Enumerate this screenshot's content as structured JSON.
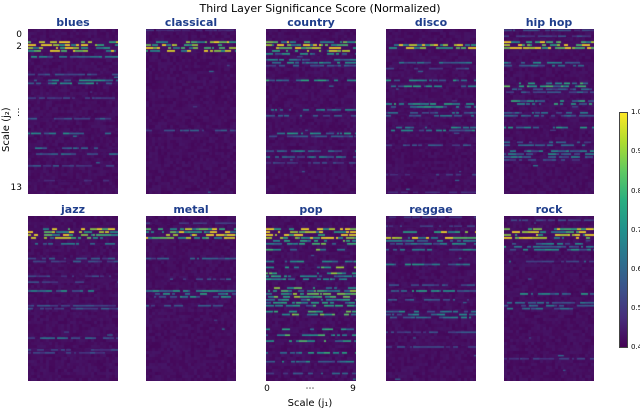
{
  "chart_data": {
    "type": "heatmap",
    "title": "Third Layer Significance Score (Normalized)",
    "xlabel": "Scale  (j₁)",
    "ylabel": "Scale  (j₂)",
    "x_ticks": [
      "0",
      "⋯",
      "9"
    ],
    "y_ticks": [
      "0",
      "2",
      "⋮",
      "13"
    ],
    "x_range": [
      0,
      9
    ],
    "y_range": [
      0,
      13
    ],
    "value_range": [
      0.4,
      1.0
    ],
    "colorbar": {
      "colormap": "viridis",
      "min": 0.4,
      "max": 1.0,
      "ticks": [
        "1.0",
        "0.9",
        "0.8",
        "0.7",
        "0.6",
        "0.5",
        "0.4"
      ]
    },
    "panels": [
      {
        "genre": "blues",
        "row_intensity": [
          0.45,
          0.82,
          0.58,
          0.5,
          0.62,
          0.48,
          0.6,
          0.52,
          0.58,
          0.48,
          0.55,
          0.5,
          0.46,
          0.44
        ]
      },
      {
        "genre": "classical",
        "row_intensity": [
          0.44,
          0.78,
          0.52,
          0.46,
          0.55,
          0.45,
          0.52,
          0.46,
          0.5,
          0.45,
          0.48,
          0.44,
          0.43,
          0.42
        ]
      },
      {
        "genre": "country",
        "row_intensity": [
          0.46,
          0.8,
          0.6,
          0.52,
          0.63,
          0.5,
          0.58,
          0.52,
          0.6,
          0.5,
          0.56,
          0.48,
          0.46,
          0.44
        ]
      },
      {
        "genre": "disco",
        "row_intensity": [
          0.45,
          0.8,
          0.56,
          0.5,
          0.6,
          0.5,
          0.62,
          0.54,
          0.58,
          0.5,
          0.56,
          0.5,
          0.47,
          0.44
        ]
      },
      {
        "genre": "hip hop",
        "row_intensity": [
          0.48,
          0.84,
          0.62,
          0.54,
          0.66,
          0.52,
          0.62,
          0.54,
          0.6,
          0.52,
          0.58,
          0.5,
          0.48,
          0.45
        ]
      },
      {
        "genre": "jazz",
        "row_intensity": [
          0.45,
          0.8,
          0.56,
          0.5,
          0.6,
          0.48,
          0.58,
          0.5,
          0.56,
          0.48,
          0.54,
          0.48,
          0.45,
          0.43
        ]
      },
      {
        "genre": "metal",
        "row_intensity": [
          0.46,
          0.8,
          0.58,
          0.52,
          0.62,
          0.5,
          0.6,
          0.52,
          0.58,
          0.5,
          0.55,
          0.49,
          0.46,
          0.44
        ]
      },
      {
        "genre": "pop",
        "row_intensity": [
          0.52,
          0.86,
          0.68,
          0.62,
          0.72,
          0.62,
          0.7,
          0.64,
          0.7,
          0.62,
          0.68,
          0.62,
          0.58,
          0.52
        ]
      },
      {
        "genre": "reggae",
        "row_intensity": [
          0.46,
          0.8,
          0.58,
          0.52,
          0.62,
          0.5,
          0.6,
          0.52,
          0.58,
          0.5,
          0.55,
          0.48,
          0.46,
          0.44
        ]
      },
      {
        "genre": "rock",
        "row_intensity": [
          0.47,
          0.83,
          0.6,
          0.53,
          0.64,
          0.52,
          0.62,
          0.54,
          0.6,
          0.52,
          0.57,
          0.5,
          0.47,
          0.44
        ]
      }
    ]
  }
}
